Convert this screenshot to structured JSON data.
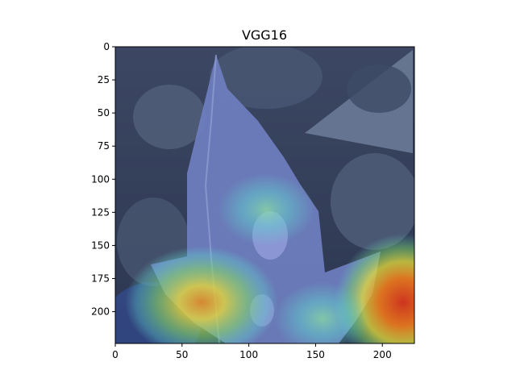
{
  "chart_data": {
    "type": "heatmap",
    "title": "VGG16",
    "xlabel": "",
    "ylabel": "",
    "xlim": [
      0,
      224
    ],
    "ylim": [
      224,
      0
    ],
    "xticks": [
      0,
      50,
      100,
      150,
      200
    ],
    "yticks": [
      0,
      25,
      50,
      75,
      100,
      125,
      150,
      175,
      200
    ],
    "grid": false,
    "legend": "none",
    "overlay": "Grad-CAM style jet colormap heatmap over a plant leaf photograph",
    "colors": {
      "background_dark": "#2f3b52",
      "leaf_tint": "#6f7fc0",
      "hot_red": "#e23a1e",
      "warm_orange": "#f08a1c",
      "yellow": "#e8e23a",
      "green": "#7cd36a",
      "cyan": "#5fd6d0",
      "cool_blue": "#3a5fd0"
    }
  }
}
